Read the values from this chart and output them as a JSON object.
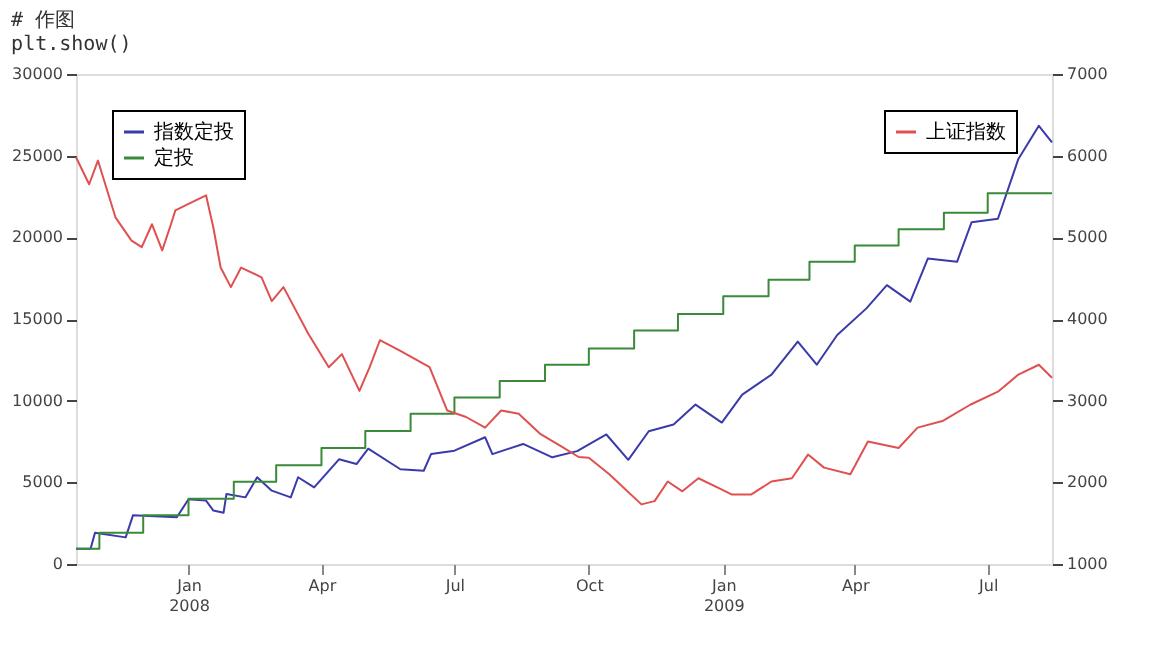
{
  "chart_data": {
    "type": "line",
    "annotations": [
      "# 作图",
      "plt.show()"
    ],
    "xlim": [
      "2007-10-16",
      "2009-08-14"
    ],
    "xticks": [
      {
        "value": "2008-01-01",
        "label": "Jan\n2008"
      },
      {
        "value": "2008-04-01",
        "label": "Apr"
      },
      {
        "value": "2008-07-01",
        "label": "Jul"
      },
      {
        "value": "2008-10-01",
        "label": "Oct"
      },
      {
        "value": "2009-01-01",
        "label": "Jan\n2009"
      },
      {
        "value": "2009-04-01",
        "label": "Apr"
      },
      {
        "value": "2009-07-01",
        "label": "Jul"
      }
    ],
    "ylim": [
      0,
      30000
    ],
    "yticks": [
      0,
      5000,
      10000,
      15000,
      20000,
      25000,
      30000
    ],
    "y2lim": [
      1000,
      7000
    ],
    "y2ticks": [
      1000,
      2000,
      3000,
      4000,
      5000,
      6000,
      7000
    ],
    "grid": false,
    "legend": "top left",
    "series": [
      {
        "name": "指数定投",
        "color": "#3a3aaa",
        "type": "line",
        "x": [
          "2007-10-16",
          "2007-10-26",
          "2007-10-29",
          "2007-11-19",
          "2007-11-24",
          "2007-12-24",
          "2008-01-01",
          "2008-01-13",
          "2008-01-18",
          "2008-01-25",
          "2008-01-27",
          "2008-02-09",
          "2008-02-17",
          "2008-02-27",
          "2008-03-11",
          "2008-03-16",
          "2008-03-27",
          "2008-04-13",
          "2008-04-25",
          "2008-05-03",
          "2008-05-25",
          "2008-06-10",
          "2008-06-15",
          "2008-07-01",
          "2008-07-22",
          "2008-07-27",
          "2008-08-17",
          "2008-09-06",
          "2008-09-23",
          "2008-10-13",
          "2008-10-28",
          "2008-11-11",
          "2008-11-28",
          "2008-12-13",
          "2008-12-31",
          "2009-01-14",
          "2009-02-03",
          "2009-02-21",
          "2009-03-06",
          "2009-03-20",
          "2009-04-09",
          "2009-04-23",
          "2009-05-09",
          "2009-05-21",
          "2009-06-10",
          "2009-06-20",
          "2009-07-08",
          "2009-07-22",
          "2009-08-05",
          "2009-08-14"
        ],
        "values": [
          940,
          940,
          1920,
          1630,
          2980,
          2860,
          3960,
          3880,
          3270,
          3140,
          4290,
          4080,
          5310,
          4490,
          4080,
          5310,
          4690,
          6410,
          6120,
          7060,
          5800,
          5710,
          6730,
          6940,
          7760,
          6730,
          7350,
          6530,
          6910,
          7930,
          6380,
          8130,
          8540,
          9760,
          8660,
          10370,
          11590,
          13620,
          12200,
          14020,
          15650,
          17070,
          16060,
          18700,
          18500,
          20930,
          21140,
          24800,
          26830,
          25810
        ]
      },
      {
        "name": "定投",
        "color": "#3a8a3a",
        "type": "step",
        "x": [
          "2007-10-16",
          "2007-11-01",
          "2007-12-01",
          "2008-01-01",
          "2008-02-01",
          "2008-03-01",
          "2008-04-01",
          "2008-05-01",
          "2008-06-01",
          "2008-07-01",
          "2008-08-01",
          "2008-09-01",
          "2008-10-01",
          "2008-11-01",
          "2008-12-01",
          "2009-01-01",
          "2009-02-01",
          "2009-03-01",
          "2009-04-01",
          "2009-05-01",
          "2009-06-01",
          "2009-07-01",
          "2009-08-14"
        ],
        "values": [
          940,
          1920,
          2980,
          4000,
          5040,
          6040,
          7100,
          8150,
          9200,
          10200,
          11200,
          12200,
          13200,
          14300,
          15300,
          16400,
          17400,
          18500,
          19500,
          20500,
          21500,
          22700,
          22700
        ]
      },
      {
        "name": "上证指数",
        "color": "#e05050",
        "type": "line",
        "axis": "y2",
        "x": [
          "2007-10-16",
          "2007-10-25",
          "2007-10-31",
          "2007-11-12",
          "2007-11-23",
          "2007-11-30",
          "2007-12-07",
          "2007-12-14",
          "2007-12-20",
          "2007-12-23",
          "2008-01-01",
          "2008-01-13",
          "2008-01-18",
          "2008-01-23",
          "2008-01-30",
          "2008-02-06",
          "2008-02-20",
          "2008-02-27",
          "2008-03-06",
          "2008-03-23",
          "2008-04-06",
          "2008-04-15",
          "2008-04-27",
          "2008-05-04",
          "2008-05-11",
          "2008-05-25",
          "2008-06-14",
          "2008-06-26",
          "2008-07-09",
          "2008-07-22",
          "2008-08-02",
          "2008-08-14",
          "2008-08-29",
          "2008-09-13",
          "2008-09-24",
          "2008-10-01",
          "2008-10-15",
          "2008-11-06",
          "2008-11-15",
          "2008-11-24",
          "2008-12-04",
          "2008-12-15",
          "2008-12-29",
          "2009-01-07",
          "2009-01-20",
          "2009-02-03",
          "2009-02-17",
          "2009-02-28",
          "2009-03-11",
          "2009-03-29",
          "2009-04-10",
          "2009-05-01",
          "2009-05-14",
          "2009-05-31",
          "2009-06-19",
          "2009-07-08",
          "2009-07-22",
          "2009-08-05",
          "2009-08-14"
        ],
        "values": [
          5980,
          5650,
          5940,
          5245,
          4960,
          4880,
          5160,
          4840,
          5160,
          5330,
          5410,
          5515,
          5120,
          4630,
          4390,
          4630,
          4510,
          4220,
          4390,
          3820,
          3410,
          3570,
          3120,
          3410,
          3740,
          3610,
          3410,
          2880,
          2800,
          2670,
          2880,
          2840,
          2590,
          2430,
          2310,
          2300,
          2100,
          1730,
          1770,
          2010,
          1890,
          2050,
          1930,
          1850,
          1850,
          2010,
          2050,
          2340,
          2180,
          2100,
          2500,
          2420,
          2670,
          2750,
          2950,
          3110,
          3320,
          3440,
          3280
        ]
      }
    ]
  }
}
